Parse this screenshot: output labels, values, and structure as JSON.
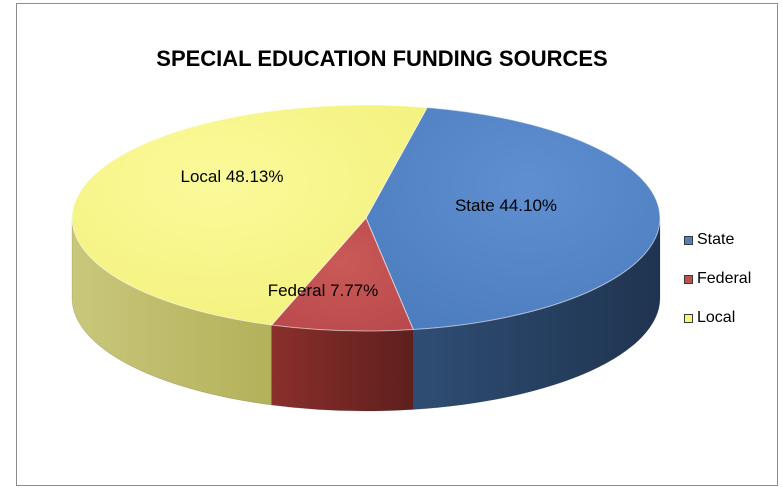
{
  "chart_data": {
    "type": "pie",
    "title": "SPECIAL EDUCATION FUNDING SOURCES",
    "slices": [
      {
        "name": "State",
        "value": 44.1,
        "label": "State 44.10%",
        "color": "#4f81bd"
      },
      {
        "name": "Federal",
        "value": 7.77,
        "label": "Federal 7.77%",
        "color": "#c0504d"
      },
      {
        "name": "Local",
        "value": 48.13,
        "label": "Local 48.13%",
        "color": "#f8f67a"
      }
    ],
    "legend": {
      "placement": "right",
      "entries": [
        "State",
        "Federal",
        "Local"
      ]
    },
    "style": "3d"
  }
}
